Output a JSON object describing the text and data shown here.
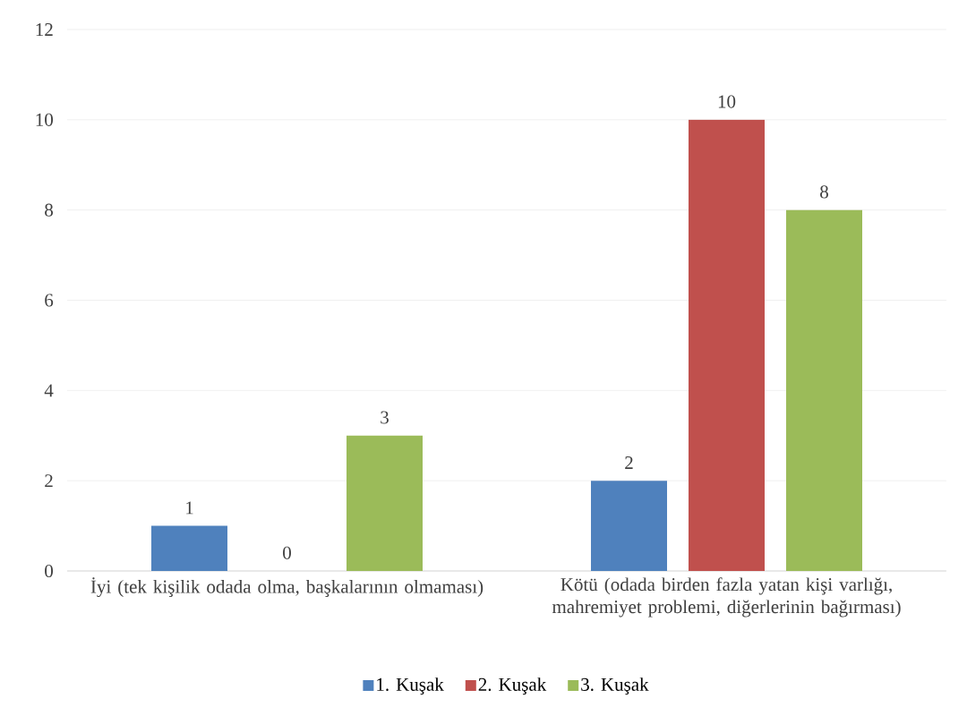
{
  "chart_data": {
    "type": "bar",
    "categories": [
      "İyi (tek kişilik odada olma, başkalarının olmaması)",
      "Kötü (odada birden fazla yatan kişi varlığı, mahremiyet problemi, diğerlerinin bağırması)"
    ],
    "series": [
      {
        "name": "1. Kuşak",
        "color": "#4f81bd",
        "values": [
          1,
          2
        ]
      },
      {
        "name": "2. Kuşak",
        "color": "#c0504d",
        "values": [
          0,
          10
        ]
      },
      {
        "name": "3. Kuşak",
        "color": "#9bbb59",
        "values": [
          3,
          8
        ]
      }
    ],
    "ylim": [
      0,
      12
    ],
    "yticks": [
      0,
      2,
      4,
      6,
      8,
      10,
      12
    ],
    "grid": "y",
    "legend": "bottom",
    "data_labels": true
  }
}
